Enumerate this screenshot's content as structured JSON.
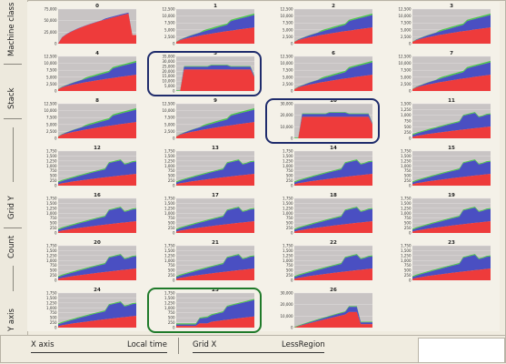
{
  "colors": {
    "red": "#ee3b3b",
    "blue": "#4a4fc2",
    "green": "#4dc84d",
    "plot_bg": "#c8c4c4",
    "grid": "#e8e4e4",
    "highlight_blue": "#1f2c6c",
    "highlight_green": "#1f7a2a"
  },
  "left_labels": {
    "machine_class": "Machine class",
    "stack": "Stack",
    "grid_y": "Grid Y",
    "count": "Count",
    "y_axis": "Y axis"
  },
  "bottom_labels": {
    "x_axis": "X axis",
    "local_time": "Local time",
    "grid_x": "Grid X",
    "less_region": "LessRegion"
  },
  "cells": [
    {
      "title": "0",
      "ticks": [
        "75,000",
        "50,000",
        "25,000",
        "0"
      ],
      "shape": "full"
    },
    {
      "title": "1",
      "ticks": [
        "12,500",
        "10,000",
        "7,500",
        "5,000",
        "2,500",
        "0"
      ],
      "shape": "stack"
    },
    {
      "title": "2",
      "ticks": [
        "12,500",
        "10,000",
        "7,500",
        "5,000",
        "2,500",
        "0"
      ],
      "shape": "stack"
    },
    {
      "title": "3",
      "ticks": [
        "12,500",
        "10,000",
        "7,500",
        "5,000",
        "2,500",
        "0"
      ],
      "shape": "stack"
    },
    {
      "title": "4",
      "ticks": [
        "12,500",
        "10,000",
        "7,500",
        "5,000",
        "2,500",
        "0"
      ],
      "shape": "stack"
    },
    {
      "title": "5",
      "ticks": [
        "35,000",
        "30,000",
        "25,000",
        "20,000",
        "15,000",
        "10,000",
        "5,000",
        "0"
      ],
      "shape": "block"
    },
    {
      "title": "6",
      "ticks": [
        "12,500",
        "10,000",
        "7,500",
        "5,000",
        "2,500",
        "0"
      ],
      "shape": "stack"
    },
    {
      "title": "7",
      "ticks": [
        "12,500",
        "10,000",
        "7,500",
        "5,000",
        "2,500",
        "0"
      ],
      "shape": "stack"
    },
    {
      "title": "8",
      "ticks": [
        "12,500",
        "10,000",
        "7,500",
        "5,000",
        "2,500",
        "0"
      ],
      "shape": "stack"
    },
    {
      "title": "9",
      "ticks": [
        "12,500",
        "10,000",
        "7,500",
        "5,000",
        "2,500",
        "0"
      ],
      "shape": "stack"
    },
    {
      "title": "10",
      "ticks": [
        "30,000",
        "20,000",
        "10,000",
        "0"
      ],
      "shape": "block"
    },
    {
      "title": "11",
      "ticks": [
        "1,500",
        "1,250",
        "1,000",
        "750",
        "500",
        "250",
        "0"
      ],
      "shape": "small"
    },
    {
      "title": "12",
      "ticks": [
        "1,750",
        "1,500",
        "1,250",
        "1,000",
        "750",
        "500",
        "250",
        "0"
      ],
      "shape": "small"
    },
    {
      "title": "13",
      "ticks": [
        "1,750",
        "1,500",
        "1,250",
        "1,000",
        "750",
        "500",
        "250",
        "0"
      ],
      "shape": "small"
    },
    {
      "title": "14",
      "ticks": [
        "1,750",
        "1,500",
        "1,250",
        "1,000",
        "750",
        "500",
        "250",
        "0"
      ],
      "shape": "small"
    },
    {
      "title": "15",
      "ticks": [
        "1,750",
        "1,500",
        "1,250",
        "1,000",
        "750",
        "500",
        "250",
        "0"
      ],
      "shape": "small"
    },
    {
      "title": "16",
      "ticks": [
        "1,750",
        "1,500",
        "1,250",
        "1,000",
        "750",
        "500",
        "250",
        "0"
      ],
      "shape": "small"
    },
    {
      "title": "17",
      "ticks": [
        "1,750",
        "1,500",
        "1,250",
        "1,000",
        "750",
        "500",
        "250",
        "0"
      ],
      "shape": "small"
    },
    {
      "title": "18",
      "ticks": [
        "1,750",
        "1,500",
        "1,250",
        "1,000",
        "750",
        "500",
        "250",
        "0"
      ],
      "shape": "small"
    },
    {
      "title": "19",
      "ticks": [
        "1,750",
        "1,500",
        "1,250",
        "1,000",
        "750",
        "500",
        "250",
        "0"
      ],
      "shape": "small"
    },
    {
      "title": "20",
      "ticks": [
        "1,750",
        "1,500",
        "1,250",
        "1,000",
        "750",
        "500",
        "250",
        "0"
      ],
      "shape": "small"
    },
    {
      "title": "21",
      "ticks": [
        "1,750",
        "1,500",
        "1,250",
        "1,000",
        "750",
        "500",
        "250",
        "0"
      ],
      "shape": "small"
    },
    {
      "title": "22",
      "ticks": [
        "1,750",
        "1,500",
        "1,250",
        "1,000",
        "750",
        "500",
        "250",
        "0"
      ],
      "shape": "small"
    },
    {
      "title": "23",
      "ticks": [
        "1,750",
        "1,500",
        "1,250",
        "1,000",
        "750",
        "500",
        "250",
        "0"
      ],
      "shape": "small"
    },
    {
      "title": "24",
      "ticks": [
        "1,750",
        "1,500",
        "1,250",
        "1,000",
        "750",
        "500",
        "250",
        "0"
      ],
      "shape": "small"
    },
    {
      "title": "25",
      "ticks": [
        "1,750",
        "1,500",
        "1,250",
        "1,000",
        "750",
        "500",
        "250",
        "0"
      ],
      "shape": "dip"
    },
    {
      "title": "26",
      "ticks": [
        "30,000",
        "20,000",
        "10,000",
        "0"
      ],
      "shape": "peak"
    }
  ],
  "highlights": [
    {
      "cell": "5",
      "color": "blue"
    },
    {
      "cell": "10",
      "color": "blue"
    },
    {
      "cell": "25",
      "color": "green"
    }
  ]
}
